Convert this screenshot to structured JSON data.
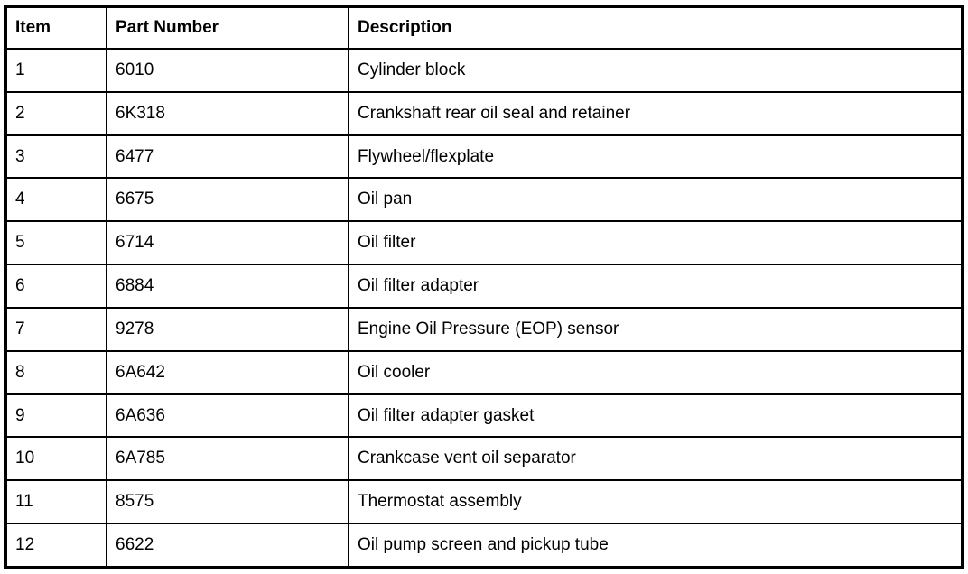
{
  "table": {
    "columns": {
      "item": "Item",
      "part_number": "Part Number",
      "description": "Description"
    },
    "rows": [
      {
        "item": "1",
        "part_number": "6010",
        "description": "Cylinder block"
      },
      {
        "item": "2",
        "part_number": "6K318",
        "description": "Crankshaft rear oil seal and retainer"
      },
      {
        "item": "3",
        "part_number": "6477",
        "description": "Flywheel/flexplate"
      },
      {
        "item": "4",
        "part_number": "6675",
        "description": "Oil pan"
      },
      {
        "item": "5",
        "part_number": "6714",
        "description": "Oil filter"
      },
      {
        "item": "6",
        "part_number": "6884",
        "description": "Oil filter adapter"
      },
      {
        "item": "7",
        "part_number": "9278",
        "description": "Engine Oil Pressure (EOP) sensor"
      },
      {
        "item": "8",
        "part_number": "6A642",
        "description": "Oil cooler"
      },
      {
        "item": "9",
        "part_number": "6A636",
        "description": "Oil filter adapter gasket"
      },
      {
        "item": "10",
        "part_number": "6A785",
        "description": "Crankcase vent oil separator"
      },
      {
        "item": "11",
        "part_number": "8575",
        "description": "Thermostat assembly"
      },
      {
        "item": "12",
        "part_number": "6622",
        "description": "Oil pump screen and pickup tube"
      }
    ],
    "colors": {
      "border": "#000000",
      "text": "#000000",
      "background": "#ffffff"
    }
  }
}
